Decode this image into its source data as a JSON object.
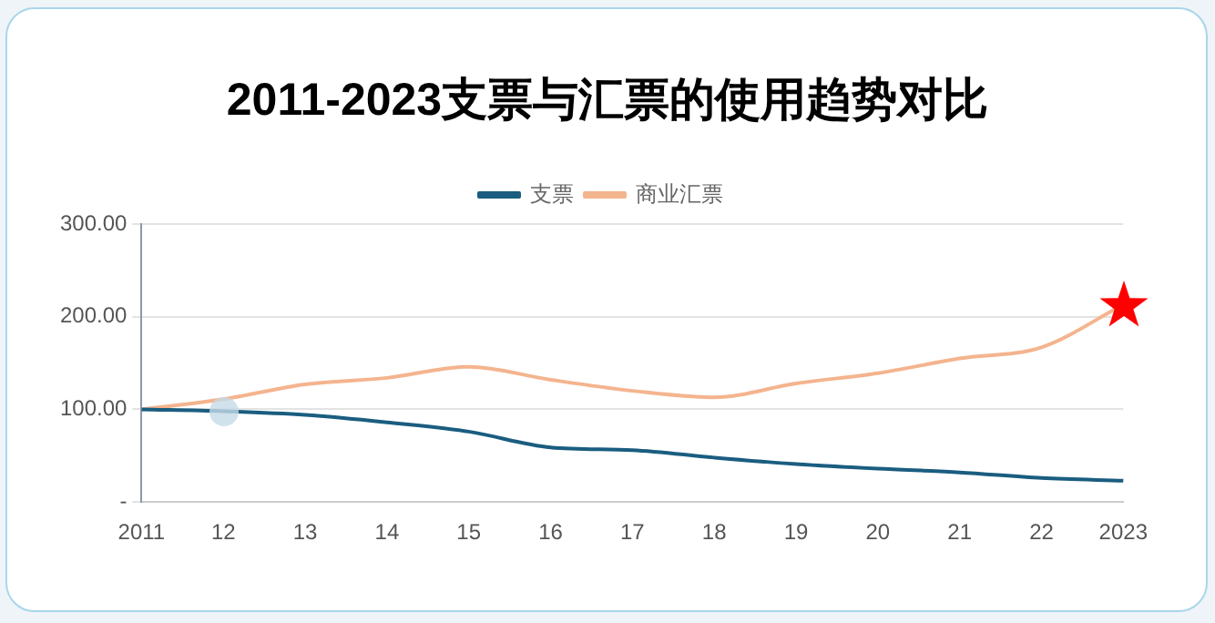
{
  "chart_data": {
    "type": "line",
    "title": "2011-2023支票与汇票的使用趋势对比",
    "categories": [
      "2011",
      "12",
      "13",
      "14",
      "15",
      "16",
      "17",
      "18",
      "19",
      "20",
      "21",
      "22",
      "2023"
    ],
    "series": [
      {
        "name": "支票",
        "color": "#1a5d80",
        "values": [
          100,
          98,
          94,
          86,
          76,
          59,
          56,
          48,
          41,
          36,
          32,
          26,
          23
        ]
      },
      {
        "name": "商业汇票",
        "color": "#f4b48e",
        "values": [
          100,
          111,
          127,
          134,
          146,
          132,
          120,
          113,
          128,
          139,
          155,
          167,
          213
        ]
      }
    ],
    "ylim": [
      0,
      300
    ],
    "yticks": [
      {
        "value": 0,
        "label": "-"
      },
      {
        "value": 100,
        "label": "100.00"
      },
      {
        "value": 200,
        "label": "200.00"
      },
      {
        "value": 300,
        "label": "300.00"
      }
    ],
    "grid": "y",
    "legend": "top",
    "marker": "none"
  }
}
